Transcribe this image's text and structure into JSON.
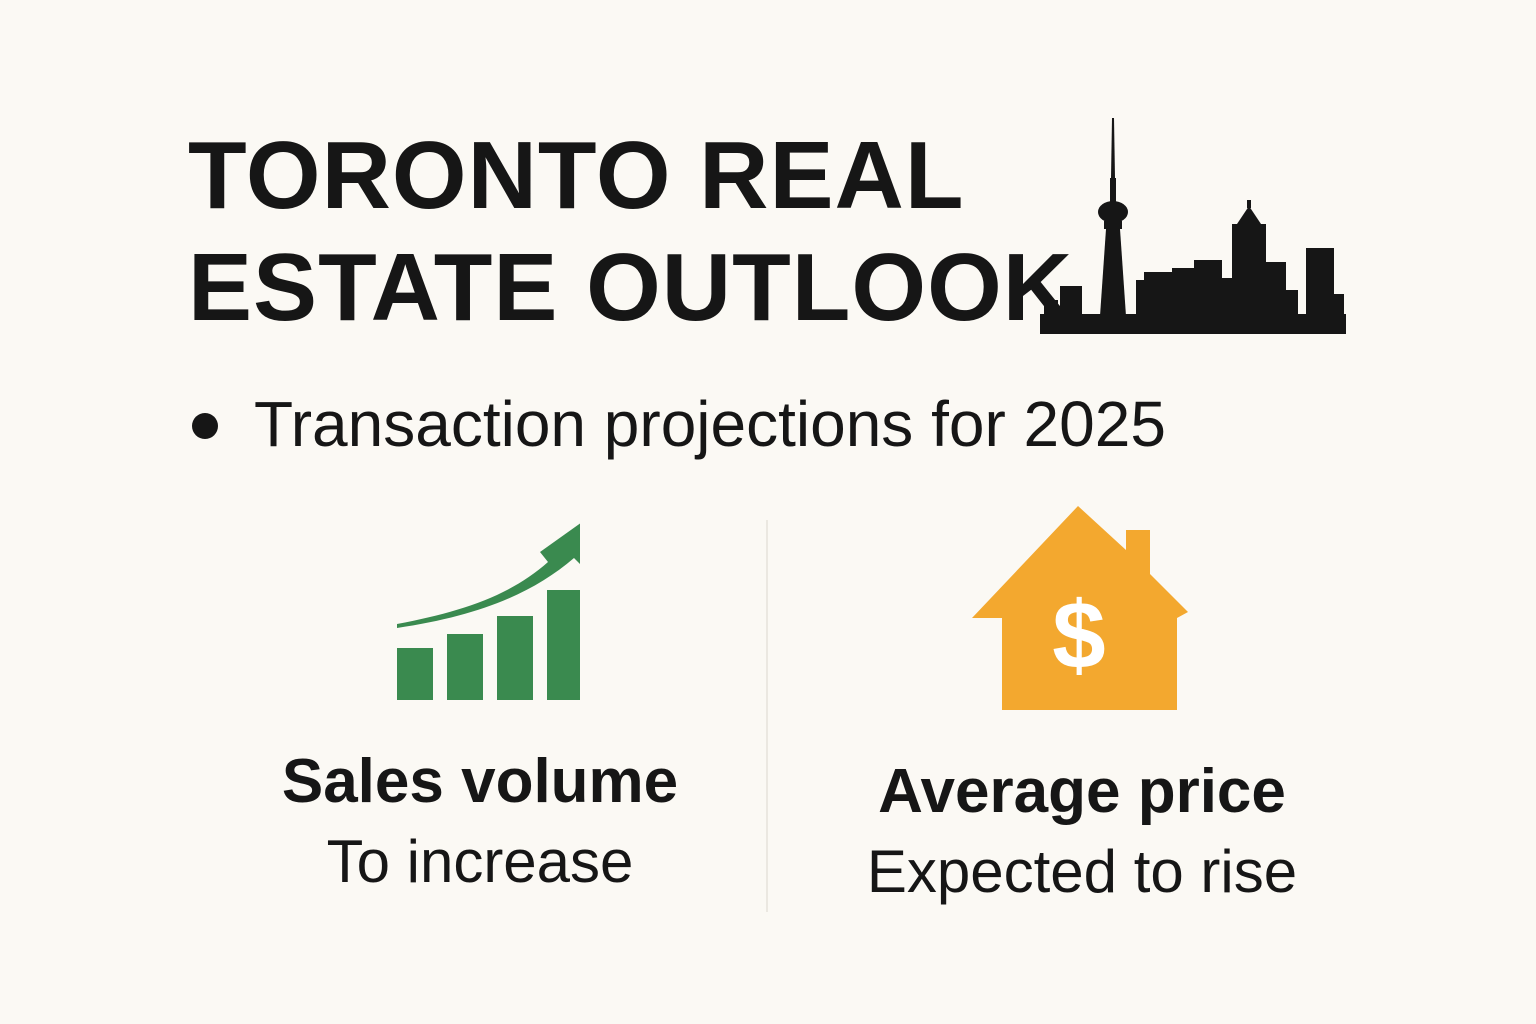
{
  "title": {
    "line1": "TORONTO REAL",
    "line2": "ESTATE OUTLOOK"
  },
  "subtitle": "Transaction projections for 2025",
  "metrics": [
    {
      "label": "Sales volume",
      "description": "To increase",
      "icon": "bar-chart-up-arrow-icon",
      "color": "#3a8a4f"
    },
    {
      "label": "Average price",
      "description": "Expected to rise",
      "icon": "house-dollar-icon",
      "color": "#f3a82f"
    }
  ],
  "icons": {
    "skyline": "toronto-skyline-icon"
  },
  "colors": {
    "background": "#fbf9f4",
    "text": "#161616",
    "green": "#3a8a4f",
    "orange": "#f3a82f"
  }
}
